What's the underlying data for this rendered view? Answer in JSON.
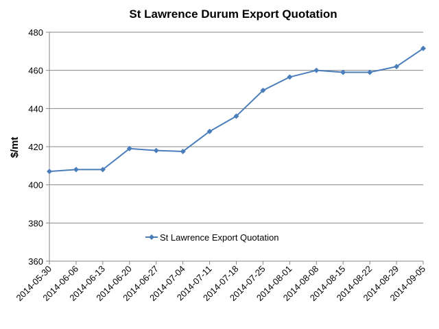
{
  "chart_data": {
    "type": "line",
    "title": "St Lawrence Durum Export Quotation",
    "xlabel": "",
    "ylabel": "$/mt",
    "ylim": [
      360,
      480
    ],
    "yticks": [
      360,
      380,
      400,
      420,
      440,
      460,
      480
    ],
    "grid": true,
    "legend_position": "center",
    "categories": [
      "2014-05-30",
      "2014-06-06",
      "2014-06-13",
      "2014-06-20",
      "2014-06-27",
      "2014-07-04",
      "2014-07-11",
      "2014-07-18",
      "2014-07-25",
      "2014-08-01",
      "2014-08-08",
      "2014-08-15",
      "2014-08-22",
      "2014-08-29",
      "2014-09-05"
    ],
    "series": [
      {
        "name": "St Lawrence Export Quotation",
        "color": "#4a7ebb",
        "values": [
          407,
          408,
          408,
          419,
          418,
          417.5,
          428,
          436,
          449.5,
          456.5,
          460,
          459,
          459,
          462,
          471.5
        ]
      }
    ]
  }
}
